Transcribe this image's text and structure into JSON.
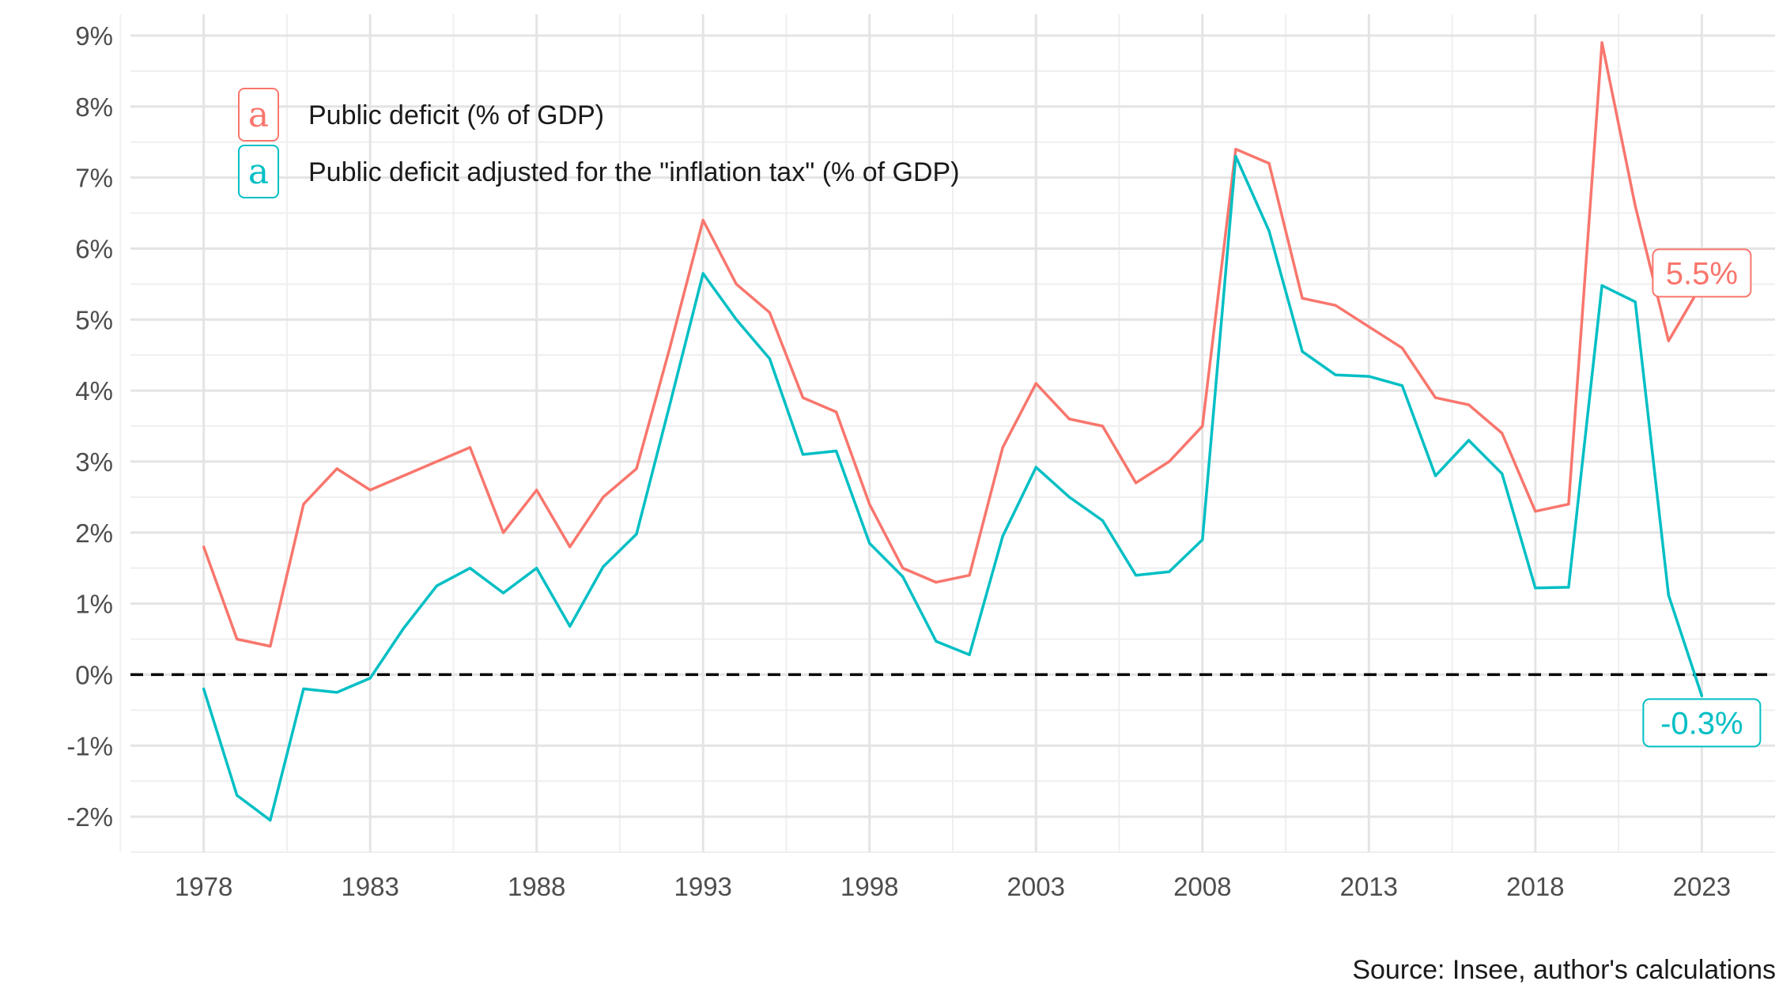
{
  "chart_data": {
    "type": "line",
    "title": "",
    "xlabel": "",
    "ylabel": "",
    "caption": "Source: Insee, author's calculations",
    "x_ticks": [
      "1978",
      "1983",
      "1988",
      "1993",
      "1998",
      "2003",
      "2008",
      "2013",
      "2018",
      "2023"
    ],
    "y_ticks": [
      "-2%",
      "-1%",
      "0%",
      "1%",
      "2%",
      "3%",
      "4%",
      "5%",
      "6%",
      "7%",
      "8%",
      "9%"
    ],
    "xlim": [
      1975.8,
      2025.2
    ],
    "ylim": [
      -2.5,
      9.3
    ],
    "grid": true,
    "reference_line": {
      "y": 0,
      "style": "dashed",
      "color": "#000000"
    },
    "legend": {
      "position": "top-left",
      "key_glyph": "a",
      "entries": [
        {
          "label": "Public deficit (% of GDP)",
          "color": "#F8766D"
        },
        {
          "label": "Public deficit adjusted for the \"inflation tax\" (% of GDP)",
          "color": "#00BFC4"
        }
      ]
    },
    "x": [
      1978,
      1979,
      1980,
      1981,
      1982,
      1983,
      1984,
      1985,
      1986,
      1987,
      1988,
      1989,
      1990,
      1991,
      1992,
      1993,
      1994,
      1995,
      1996,
      1997,
      1998,
      1999,
      2000,
      2001,
      2002,
      2003,
      2004,
      2005,
      2006,
      2007,
      2008,
      2009,
      2010,
      2011,
      2012,
      2013,
      2014,
      2015,
      2016,
      2017,
      2018,
      2019,
      2020,
      2021,
      2022,
      2023
    ],
    "series": [
      {
        "name": "Public deficit (% of GDP)",
        "color": "#F8766D",
        "end_label": "5.5%",
        "values": [
          1.8,
          0.5,
          0.4,
          2.4,
          2.9,
          2.6,
          2.8,
          3.0,
          3.2,
          2.0,
          2.6,
          1.8,
          2.5,
          2.9,
          4.6,
          6.4,
          5.5,
          5.1,
          3.9,
          3.7,
          2.4,
          1.5,
          1.3,
          1.4,
          3.2,
          4.1,
          3.6,
          3.5,
          2.7,
          3.0,
          3.5,
          7.4,
          7.2,
          5.3,
          5.2,
          4.9,
          4.6,
          3.9,
          3.8,
          3.4,
          2.3,
          2.4,
          8.9,
          6.6,
          4.7,
          5.5
        ]
      },
      {
        "name": "Public deficit adjusted for the \"inflation tax\" (% of GDP)",
        "color": "#00BFC4",
        "end_label": "-0.3%",
        "values": [
          -0.2,
          -1.7,
          -2.05,
          -0.2,
          -0.25,
          -0.05,
          0.65,
          1.25,
          1.5,
          1.15,
          1.5,
          0.68,
          1.52,
          1.98,
          3.8,
          5.65,
          5.0,
          4.45,
          3.1,
          3.15,
          1.85,
          1.38,
          0.47,
          0.28,
          1.95,
          2.92,
          2.5,
          2.17,
          1.4,
          1.45,
          1.9,
          7.3,
          6.25,
          4.55,
          4.22,
          4.2,
          4.07,
          2.8,
          3.3,
          2.83,
          1.22,
          1.23,
          5.48,
          5.25,
          1.12,
          -0.3
        ]
      }
    ]
  }
}
